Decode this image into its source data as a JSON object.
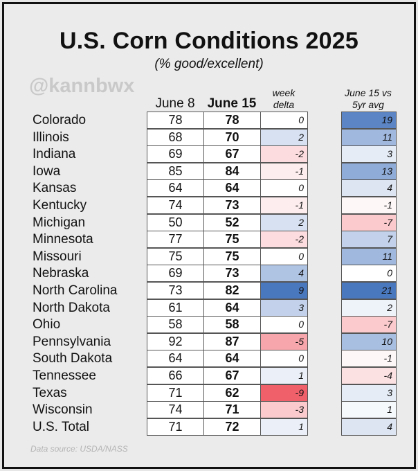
{
  "title": "U.S. Corn Conditions 2025",
  "subtitle": "(% good/excellent)",
  "watermark": "@kannbwx",
  "source": "Data source: USDA/NASS",
  "headers": {
    "june8": "June 8",
    "june15": "June 15",
    "delta_line1": "week",
    "delta_line2": "delta",
    "vs5yr_line1": "June 15 vs",
    "vs5yr_line2": "5yr avg"
  },
  "color_scale": {
    "positive": "#4a78bf",
    "negative": "#f0606a",
    "neutral": "#ffffff"
  },
  "chart_data": {
    "type": "table",
    "title": "U.S. Corn Conditions 2025",
    "subtitle": "(% good/excellent)",
    "columns": [
      "June 8",
      "June 15",
      "week delta",
      "June 15 vs 5yr avg"
    ],
    "rows": [
      {
        "state": "Colorado",
        "june8": "78",
        "june15": "78",
        "delta": "0",
        "vs5yr": "19"
      },
      {
        "state": "Illinois",
        "june8": "68",
        "june15": "70",
        "delta": "2",
        "vs5yr": "11"
      },
      {
        "state": "Indiana",
        "june8": "69",
        "june15": "67",
        "delta": "-2",
        "vs5yr": "3"
      },
      {
        "state": "Iowa",
        "june8": "85",
        "june15": "84",
        "delta": "-1",
        "vs5yr": "13"
      },
      {
        "state": "Kansas",
        "june8": "64",
        "june15": "64",
        "delta": "0",
        "vs5yr": "4"
      },
      {
        "state": "Kentucky",
        "june8": "74",
        "june15": "73",
        "delta": "-1",
        "vs5yr": "-1"
      },
      {
        "state": "Michigan",
        "june8": "50",
        "june15": "52",
        "delta": "2",
        "vs5yr": "-7"
      },
      {
        "state": "Minnesota",
        "june8": "77",
        "june15": "75",
        "delta": "-2",
        "vs5yr": "7"
      },
      {
        "state": "Missouri",
        "june8": "75",
        "june15": "75",
        "delta": "0",
        "vs5yr": "11"
      },
      {
        "state": "Nebraska",
        "june8": "69",
        "june15": "73",
        "delta": "4",
        "vs5yr": "0"
      },
      {
        "state": "North Carolina",
        "june8": "73",
        "june15": "82",
        "delta": "9",
        "vs5yr": "21"
      },
      {
        "state": "North Dakota",
        "june8": "61",
        "june15": "64",
        "delta": "3",
        "vs5yr": "2"
      },
      {
        "state": "Ohio",
        "june8": "58",
        "june15": "58",
        "delta": "0",
        "vs5yr": "-7"
      },
      {
        "state": "Pennsylvania",
        "june8": "92",
        "june15": "87",
        "delta": "-5",
        "vs5yr": "10"
      },
      {
        "state": "South Dakota",
        "june8": "64",
        "june15": "64",
        "delta": "0",
        "vs5yr": "-1"
      },
      {
        "state": "Tennessee",
        "june8": "66",
        "june15": "67",
        "delta": "1",
        "vs5yr": "-4"
      },
      {
        "state": "Texas",
        "june8": "71",
        "june15": "62",
        "delta": "-9",
        "vs5yr": "3"
      },
      {
        "state": "Wisconsin",
        "june8": "74",
        "june15": "71",
        "delta": "-3",
        "vs5yr": "1"
      },
      {
        "state": "U.S. Total",
        "june8": "71",
        "june15": "72",
        "delta": "1",
        "vs5yr": "4"
      }
    ]
  }
}
